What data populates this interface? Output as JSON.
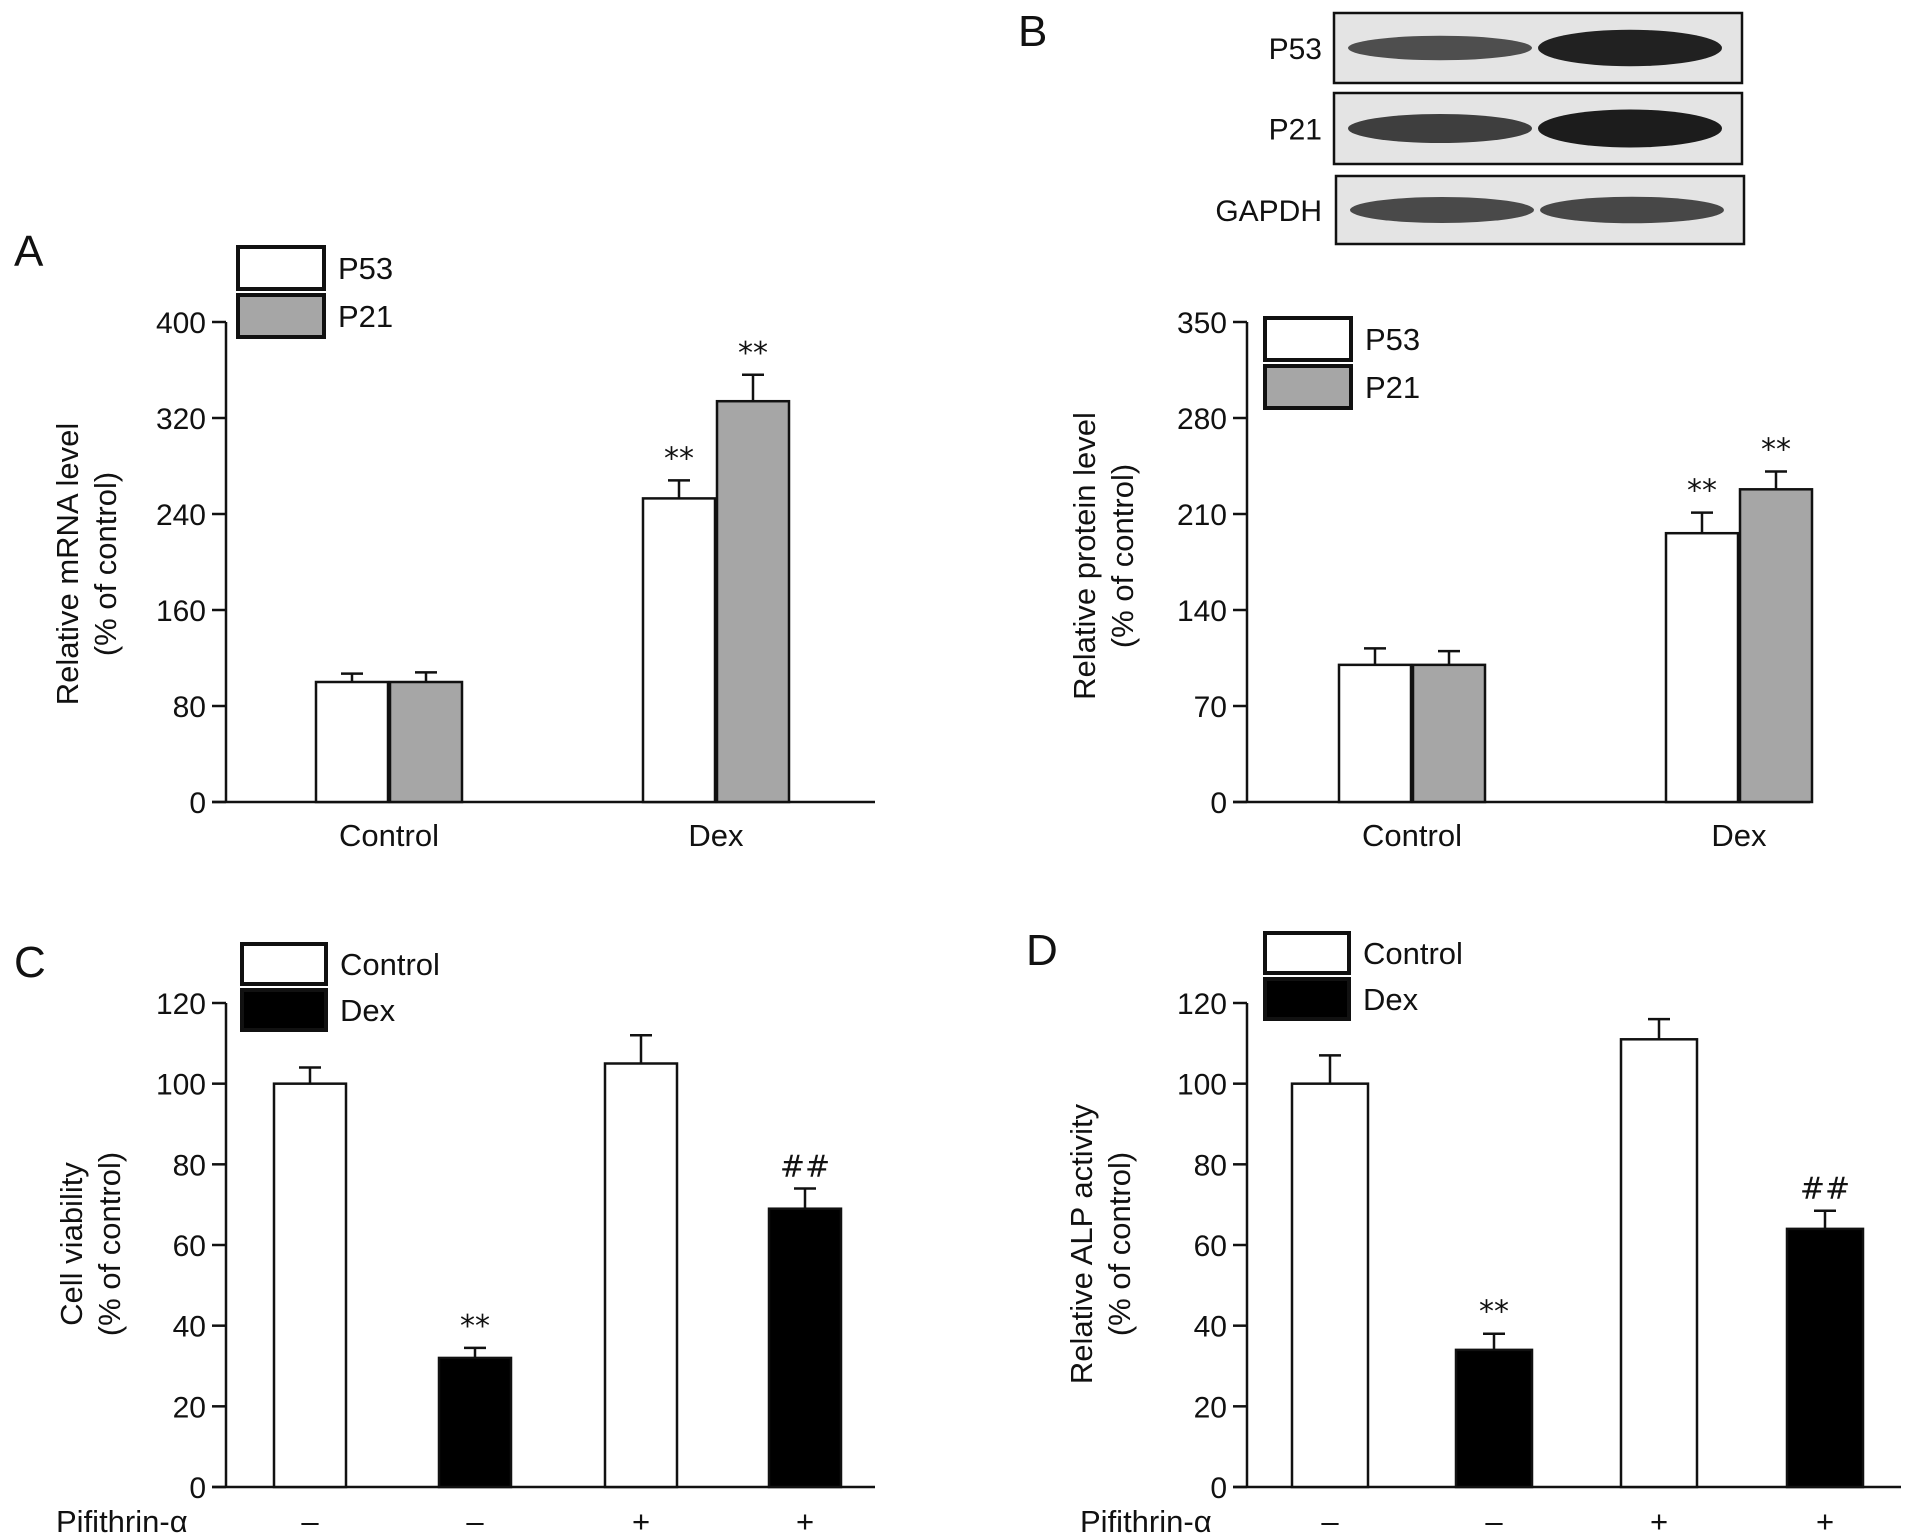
{
  "colors": {
    "white_fill": "#ffffff",
    "gray_fill": "#a6a6a6",
    "black_fill": "#000000",
    "axis": "#111111"
  },
  "blot": {
    "panel_letter": "B",
    "rows": [
      {
        "label": "P53",
        "band_intensity": [
          0.55,
          0.95
        ]
      },
      {
        "label": "P21",
        "band_intensity": [
          0.7,
          1.0
        ]
      },
      {
        "label": "GAPDH",
        "band_intensity": [
          0.6,
          0.62
        ]
      }
    ]
  },
  "chart_data": [
    {
      "id": "A",
      "type": "bar",
      "panel_letter": "A",
      "categories": [
        "Control",
        "Dex"
      ],
      "ylabel_line1": "Relative mRNA level",
      "ylabel_line2": "(% of control)",
      "ylim": [
        0,
        400
      ],
      "yticks": [
        "0",
        "80",
        "160",
        "240",
        "320",
        "400"
      ],
      "legend": {
        "position": "top-left",
        "entries": [
          "P53",
          "P21"
        ]
      },
      "series": [
        {
          "name": "P53",
          "fill": "white",
          "values": [
            100,
            253
          ],
          "errors": [
            7,
            15
          ],
          "sig": [
            "",
            "**"
          ]
        },
        {
          "name": "P21",
          "fill": "gray",
          "values": [
            100,
            334
          ],
          "errors": [
            8,
            22
          ],
          "sig": [
            "",
            "**"
          ]
        }
      ]
    },
    {
      "id": "B",
      "type": "bar",
      "categories": [
        "Control",
        "Dex"
      ],
      "ylabel_line1": "Relative protein level",
      "ylabel_line2": "(% of control)",
      "ylim": [
        0,
        350
      ],
      "yticks": [
        "0",
        "70",
        "140",
        "210",
        "280",
        "350"
      ],
      "legend": {
        "position": "top-left",
        "entries": [
          "P53",
          "P21"
        ]
      },
      "series": [
        {
          "name": "P53",
          "fill": "white",
          "values": [
            100,
            196
          ],
          "errors": [
            12,
            15
          ],
          "sig": [
            "",
            "**"
          ]
        },
        {
          "name": "P21",
          "fill": "gray",
          "values": [
            100,
            228
          ],
          "errors": [
            10,
            13
          ],
          "sig": [
            "",
            "**"
          ]
        }
      ]
    },
    {
      "id": "C",
      "type": "bar",
      "panel_letter": "C",
      "ylabel_line1": "Cell viability",
      "ylabel_line2": "(% of control)",
      "ylim": [
        0,
        120
      ],
      "yticks": [
        "0",
        "20",
        "40",
        "60",
        "80",
        "100",
        "120"
      ],
      "legend": {
        "position": "top-left",
        "entries": [
          "Control",
          "Dex"
        ]
      },
      "treatment_label": "Pifithrin-α",
      "treatment_signs": [
        "–",
        "–",
        "+",
        "+"
      ],
      "bars": [
        {
          "group": "Control",
          "fill": "white",
          "value": 100,
          "error": 4,
          "sig": ""
        },
        {
          "group": "Dex",
          "fill": "black",
          "value": 32,
          "error": 2.5,
          "sig": "**"
        },
        {
          "group": "Control",
          "fill": "white",
          "value": 105,
          "error": 7,
          "sig": ""
        },
        {
          "group": "Dex",
          "fill": "black",
          "value": 69,
          "error": 5,
          "sig": "##"
        }
      ]
    },
    {
      "id": "D",
      "type": "bar",
      "panel_letter": "D",
      "ylabel_line1": "Relative ALP activity",
      "ylabel_line2": "(% of control)",
      "ylim": [
        0,
        120
      ],
      "yticks": [
        "0",
        "20",
        "40",
        "60",
        "80",
        "100",
        "120"
      ],
      "legend": {
        "position": "top-left",
        "entries": [
          "Control",
          "Dex"
        ]
      },
      "treatment_label": "Pifithrin-α",
      "treatment_signs": [
        "–",
        "–",
        "+",
        "+"
      ],
      "bars": [
        {
          "group": "Control",
          "fill": "white",
          "value": 100,
          "error": 7,
          "sig": ""
        },
        {
          "group": "Dex",
          "fill": "black",
          "value": 34,
          "error": 4,
          "sig": "**"
        },
        {
          "group": "Control",
          "fill": "white",
          "value": 111,
          "error": 5,
          "sig": ""
        },
        {
          "group": "Dex",
          "fill": "black",
          "value": 64,
          "error": 4.5,
          "sig": "##"
        }
      ]
    }
  ]
}
